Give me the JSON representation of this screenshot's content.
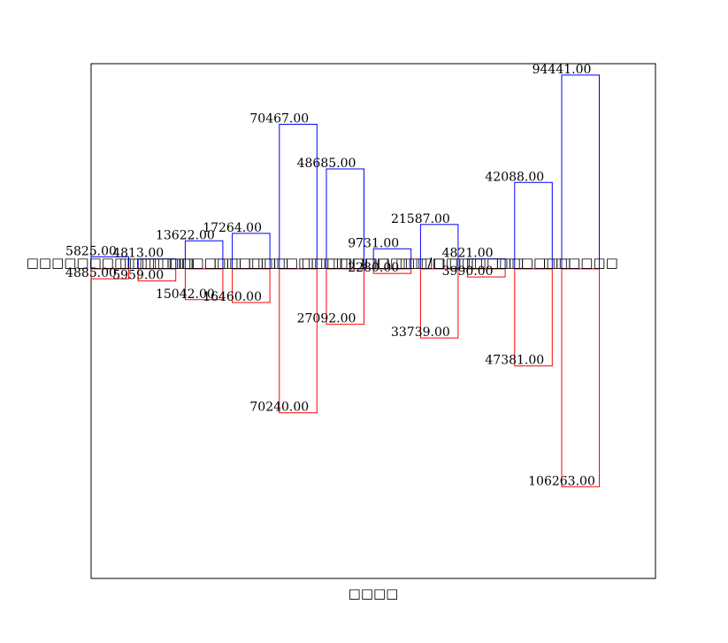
{
  "chart_data": {
    "type": "bar",
    "xlabel": "□□□□",
    "categories": [
      "□□□□□□□□□□□ □□",
      "□□□□□□",
      "□□□□□□",
      "□□□□□□",
      "□□□□□□□□",
      "□□□□□□□",
      "□□□□□□□/□",
      "□□□□□□□",
      "□□□□□□",
      "□□□□□□",
      "□□□□□□"
    ],
    "series": [
      {
        "color": "blue",
        "values": [
          5825,
          4813,
          13622,
          17264,
          70467,
          48685,
          9731,
          21587,
          4821,
          42088,
          94441
        ],
        "value_labels": [
          "5825.00",
          "4813.00",
          "13622.00",
          "17264.00",
          "70467.00",
          "48685.00",
          "9731.00",
          "21587.00",
          "4821.00",
          "42088.00",
          "94441.00"
        ]
      },
      {
        "color": "red",
        "values": [
          -4885,
          -5959,
          -15042,
          -16460,
          -70240,
          -27092,
          -2280,
          -33739,
          -3990,
          -47381,
          -106263
        ],
        "value_labels": [
          "4885.00",
          "5959.00",
          "15042.00",
          "16460.00",
          "70240.00",
          "27092.00",
          "2280.00",
          "33739.00",
          "3990.00",
          "47381.00",
          "106263.00"
        ]
      }
    ],
    "ylim": [
      -151000,
      100000
    ]
  }
}
